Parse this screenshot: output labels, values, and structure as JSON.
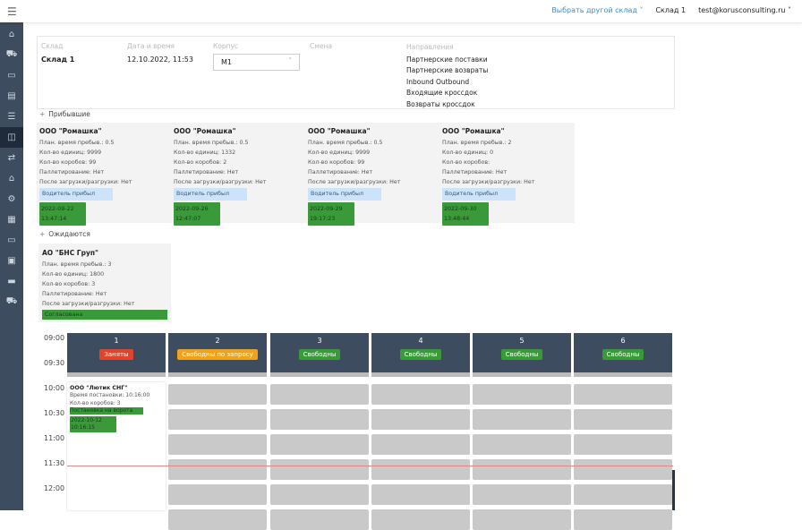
{
  "header": {
    "menu_icon": "hamburger-icon",
    "choose_warehouse": "Выбрать другой склад",
    "warehouse": "Склад 1",
    "user": "test@korusconsulting.ru"
  },
  "sidebar": {
    "items": [
      "home-icon",
      "truck-icon",
      "calendar-icon",
      "window-icon",
      "chat-icon",
      "gates-icon",
      "route-icon",
      "home-settings-icon",
      "gear-icon",
      "grid-icon",
      "id-card-icon",
      "schedule-icon",
      "ticket-icon",
      "delivery-icon"
    ],
    "active_index": 5
  },
  "info": {
    "warehouse_label": "Склад",
    "warehouse_value": "Склад 1",
    "datetime_label": "Дата и время",
    "datetime_value": "12.10.2022, 11:53",
    "building_label": "Корпус",
    "building_value": "M1",
    "shift_label": "Смена",
    "directions_label": "Направления",
    "directions": [
      "Партнерские поставки",
      "Партнерские возвраты",
      "Inbound  Outbound",
      "Входящие кроссдок",
      "Возвраты кроссдок"
    ]
  },
  "arrived": {
    "title": "Прибывшие",
    "cards": [
      {
        "name": "ООО \"Ромашка\"",
        "plan": "План. время пребыв.: 0.5",
        "units": "Кол-во единиц: 9999",
        "boxes": "Кол-во коробов: 99",
        "pallet": "Паллетирование: Нет",
        "after": "После загрузки/разгрузки: Нет",
        "status": "Водитель прибыл",
        "date": "2022-09-22",
        "time": "13:47:14"
      },
      {
        "name": "ООО \"Ромашка\"",
        "plan": "План. время пребыв.: 0.5",
        "units": "Кол-во единиц: 1332",
        "boxes": "Кол-во коробов: 2",
        "pallet": "Паллетирование: Нет",
        "after": "После загрузки/разгрузки: Нет",
        "status": "Водитель прибыл",
        "date": "2022-09-26",
        "time": "12:47:07"
      },
      {
        "name": "ООО \"Ромашка\"",
        "plan": "План. время пребыв.: 0.5",
        "units": "Кол-во единиц: 9999",
        "boxes": "Кол-во коробов: 99",
        "pallet": "Паллетирование: Нет",
        "after": "После загрузки/разгрузки: Нет",
        "status": "Водитель прибыл",
        "date": "2022-09-29",
        "time": "19:17:23"
      },
      {
        "name": "ООО \"Ромашка\"",
        "plan": "План. время пребыв.: 2",
        "units": "Кол-во единиц: 0",
        "boxes": "Кол-во коробов:",
        "pallet": "Паллетирование: Нет",
        "after": "После загрузки/разгрузки: Нет",
        "status": "Водитель прибыл",
        "date": "2022-09-30",
        "time": "13:48:44"
      }
    ]
  },
  "awaiting": {
    "title": "Ожидаются",
    "card": {
      "name": "АО \"БНС Груп\"",
      "plan": "План. время пребыв.: 3",
      "units": "Кол-во единиц: 1800",
      "boxes": "Кол-во коробов: 3",
      "pallet": "Паллетирование: Нет",
      "after": "После загрузки/разгрузки: Нет",
      "status": "Согласована"
    }
  },
  "schedule": {
    "times": [
      "09:00",
      "09:30",
      "10:00",
      "10:30",
      "11:00",
      "11:30",
      "12:00"
    ],
    "gates": [
      {
        "num": "1",
        "status": "Заняты",
        "color": "#e0452b"
      },
      {
        "num": "2",
        "status": "Свободны по запросу",
        "color": "#f0a21a"
      },
      {
        "num": "3",
        "status": "Свободны",
        "color": "#3a9a3a"
      },
      {
        "num": "4",
        "status": "Свободны",
        "color": "#3a9a3a"
      },
      {
        "num": "5",
        "status": "Свободны",
        "color": "#3a9a3a"
      },
      {
        "num": "6",
        "status": "Свободны",
        "color": "#3a9a3a"
      }
    ],
    "booking": {
      "name": "ООО \"Лютик СНГ\"",
      "time": "Время постановки: 10:16:00",
      "boxes": "Кол-во коробов: 3",
      "status": "Постановка на ворота",
      "date": "2022-10-12",
      "clock": "10:16:15"
    }
  }
}
